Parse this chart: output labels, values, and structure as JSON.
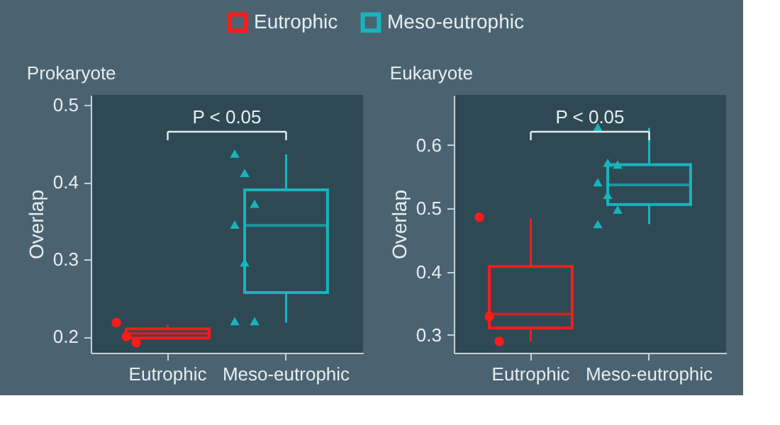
{
  "chart_data": [
    {
      "type": "box",
      "title": "Prokaryote",
      "ylabel": "Overlap",
      "categories": [
        "Eutrophic",
        "Meso-eutrophic"
      ],
      "ylim": [
        0.179,
        0.513
      ],
      "yticks": [
        0.2,
        0.3,
        0.4,
        0.5
      ],
      "legend": "top",
      "annotations": [
        "P < 0.05"
      ],
      "series": [
        {
          "name": "Eutrophic",
          "color": "#ff1a1a",
          "boxes": [
            {
              "low": 0.197,
              "q1": 0.198,
              "median": 0.204,
              "q3": 0.21,
              "high": 0.215
            },
            null
          ]
        },
        {
          "name": "Meso-eutrophic",
          "color": "#17b5bd",
          "boxes": [
            null,
            {
              "low": 0.218,
              "q1": 0.257,
              "median": 0.344,
              "q3": 0.39,
              "high": 0.436
            }
          ]
        },
        {
          "type": "scatter",
          "marker": "circle",
          "color": "#ff1a1a",
          "x": [
            "Eutrophic",
            "Eutrophic",
            "Eutrophic"
          ],
          "values": [
            0.218,
            0.2,
            0.192
          ]
        },
        {
          "type": "scatter",
          "marker": "triangle",
          "color": "#17b5bd",
          "x": [
            "Meso-eutrophic",
            "Meso-eutrophic",
            "Meso-eutrophic",
            "Meso-eutrophic",
            "Meso-eutrophic",
            "Meso-eutrophic",
            "Meso-eutrophic"
          ],
          "values": [
            0.437,
            0.412,
            0.372,
            0.345,
            0.296,
            0.22,
            0.22
          ]
        }
      ]
    },
    {
      "type": "box",
      "title": "Eukaryote",
      "ylabel": "Overlap",
      "categories": [
        "Eutrophic",
        "Meso-eutrophic"
      ],
      "ylim": [
        0.272,
        0.679
      ],
      "yticks": [
        0.3,
        0.4,
        0.5,
        0.6
      ],
      "annotations": [
        "P < 0.05"
      ],
      "series": [
        {
          "name": "Eutrophic",
          "color": "#ff1a1a",
          "boxes": [
            {
              "low": 0.29,
              "q1": 0.311,
              "median": 0.333,
              "q3": 0.408,
              "high": 0.484
            },
            null
          ]
        },
        {
          "name": "Meso-eutrophic",
          "color": "#17b5bd",
          "boxes": [
            null,
            {
              "low": 0.475,
              "q1": 0.506,
              "median": 0.537,
              "q3": 0.569,
              "high": 0.627
            }
          ]
        },
        {
          "type": "scatter",
          "marker": "circle",
          "color": "#ff1a1a",
          "x": [
            "Eutrophic",
            "Eutrophic",
            "Eutrophic"
          ],
          "values": [
            0.486,
            0.329,
            0.29
          ]
        },
        {
          "type": "scatter",
          "marker": "triangle",
          "color": "#17b5bd",
          "x": [
            "Meso-eutrophic",
            "Meso-eutrophic",
            "Meso-eutrophic",
            "Meso-eutrophic",
            "Meso-eutrophic",
            "Meso-eutrophic",
            "Meso-eutrophic"
          ],
          "values": [
            0.628,
            0.572,
            0.569,
            0.541,
            0.521,
            0.498,
            0.475
          ]
        }
      ]
    }
  ]
}
